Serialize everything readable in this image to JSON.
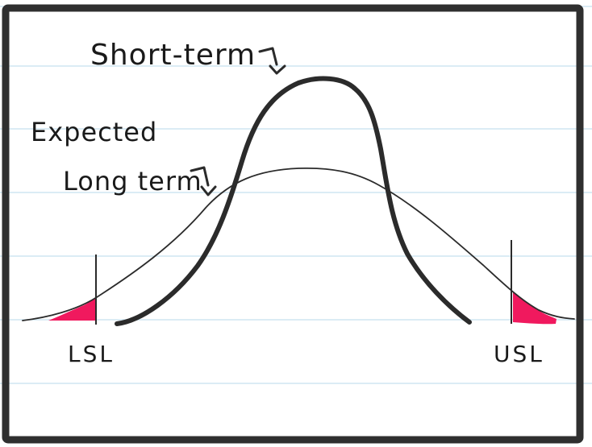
{
  "labels": {
    "short_term": "Short-term",
    "expected": "Expected",
    "long_term": "Long term",
    "lsl": "LSL",
    "usl": "USL"
  },
  "colors": {
    "ink": "#2b2b2b",
    "paper_lines": "#cfe6f2",
    "defect_fill": "#f0195e",
    "frame": "#2f2f2f",
    "background": "#ffffff"
  }
}
